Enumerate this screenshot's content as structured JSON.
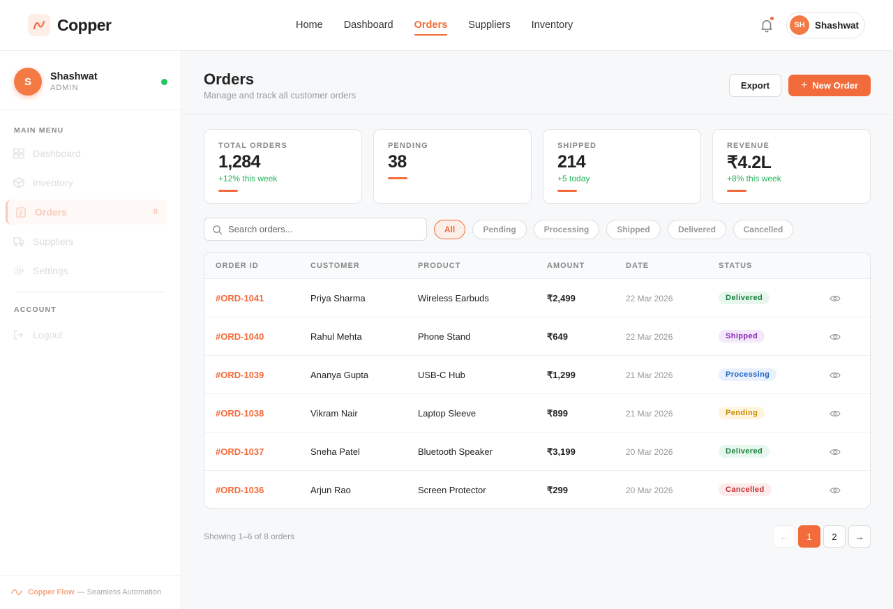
{
  "app": {
    "name": "Copper"
  },
  "nav": [
    {
      "label": "Home",
      "active": false
    },
    {
      "label": "Dashboard",
      "active": false
    },
    {
      "label": "Orders",
      "active": true
    },
    {
      "label": "Suppliers",
      "active": false
    },
    {
      "label": "Inventory",
      "active": false
    }
  ],
  "user": {
    "initials": "SH",
    "name": "Shashwat"
  },
  "sidebar": {
    "profile": {
      "initial": "S",
      "name": "Shashwat",
      "role": "ADMIN"
    },
    "main_menu_label": "MAIN MENU",
    "items": [
      {
        "label": "Dashboard",
        "icon": "grid-icon"
      },
      {
        "label": "Inventory",
        "icon": "box-icon"
      },
      {
        "label": "Orders",
        "icon": "clipboard-icon",
        "active": true,
        "badge": "8"
      },
      {
        "label": "Suppliers",
        "icon": "truck-icon"
      },
      {
        "label": "Settings",
        "icon": "gear-icon"
      }
    ],
    "account_label": "ACCOUNT",
    "account_items": [
      {
        "label": "Logout",
        "icon": "logout-icon"
      }
    ],
    "footer": {
      "brand": "Copper Flow",
      "tagline": "— Seamless Automation"
    }
  },
  "page": {
    "title": "Orders",
    "subtitle": "Manage and track all customer orders",
    "export_label": "Export",
    "new_order_label": "New Order"
  },
  "stats": [
    {
      "label": "TOTAL ORDERS",
      "value": "1,284",
      "change": "+12% this week"
    },
    {
      "label": "PENDING",
      "value": "38",
      "change": ""
    },
    {
      "label": "SHIPPED",
      "value": "214",
      "change": "+5 today"
    },
    {
      "label": "REVENUE",
      "value": "₹4.2L",
      "change": "+8% this week"
    }
  ],
  "search": {
    "placeholder": "Search orders...",
    "value": ""
  },
  "filters": [
    {
      "label": "All",
      "active": true
    },
    {
      "label": "Pending",
      "active": false
    },
    {
      "label": "Processing",
      "active": false
    },
    {
      "label": "Shipped",
      "active": false
    },
    {
      "label": "Delivered",
      "active": false
    },
    {
      "label": "Cancelled",
      "active": false
    }
  ],
  "table": {
    "columns": [
      "ORDER ID",
      "CUSTOMER",
      "PRODUCT",
      "AMOUNT",
      "DATE",
      "STATUS"
    ],
    "rows": [
      {
        "id": "#ORD-1041",
        "customer": "Priya Sharma",
        "product": "Wireless Earbuds",
        "amount": "₹2,499",
        "date": "22 Mar 2026",
        "status": "Delivered",
        "status_key": "delivered"
      },
      {
        "id": "#ORD-1040",
        "customer": "Rahul Mehta",
        "product": "Phone Stand",
        "amount": "₹649",
        "date": "22 Mar 2026",
        "status": "Shipped",
        "status_key": "shipped"
      },
      {
        "id": "#ORD-1039",
        "customer": "Ananya Gupta",
        "product": "USB-C Hub",
        "amount": "₹1,299",
        "date": "21 Mar 2026",
        "status": "Processing",
        "status_key": "processing"
      },
      {
        "id": "#ORD-1038",
        "customer": "Vikram Nair",
        "product": "Laptop Sleeve",
        "amount": "₹899",
        "date": "21 Mar 2026",
        "status": "Pending",
        "status_key": "pending"
      },
      {
        "id": "#ORD-1037",
        "customer": "Sneha Patel",
        "product": "Bluetooth Speaker",
        "amount": "₹3,199",
        "date": "20 Mar 2026",
        "status": "Delivered",
        "status_key": "delivered"
      },
      {
        "id": "#ORD-1036",
        "customer": "Arjun Rao",
        "product": "Screen Protector",
        "amount": "₹299",
        "date": "20 Mar 2026",
        "status": "Cancelled",
        "status_key": "cancelled"
      }
    ]
  },
  "pagination": {
    "showing": "Showing 1–6 of 8 orders",
    "prev": "←",
    "next": "→",
    "pages": [
      "1",
      "2"
    ],
    "current": "1"
  },
  "colors": {
    "accent": "#f26b3a",
    "success": "#22c55e"
  }
}
